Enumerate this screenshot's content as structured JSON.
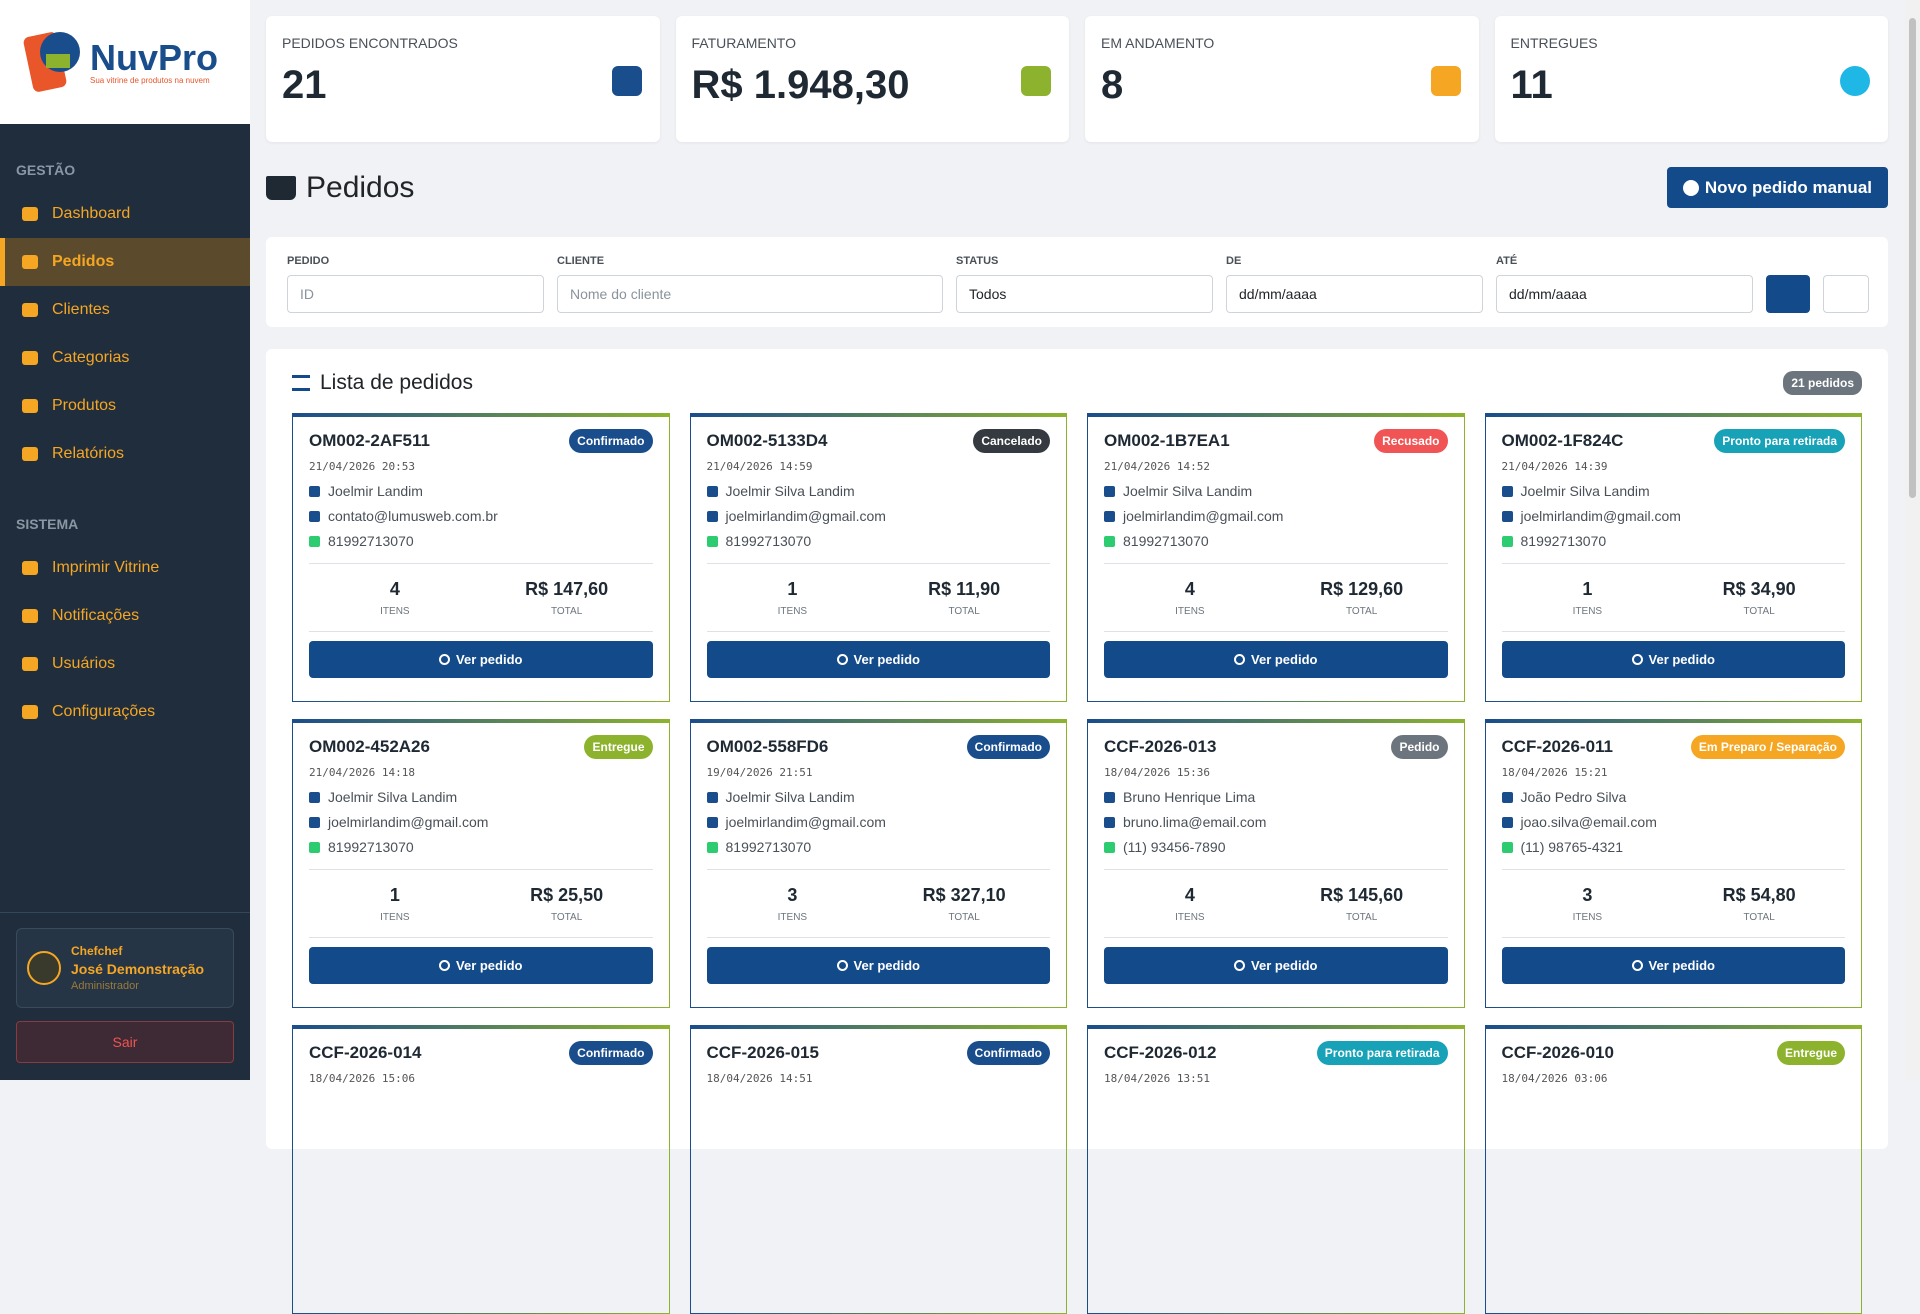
{
  "brand": {
    "name": "NuvPro",
    "tagline": "Sua vitrine de produtos na nuvem"
  },
  "sidebar": {
    "sections": [
      {
        "title": "GESTÃO",
        "items": [
          {
            "label": "Dashboard"
          },
          {
            "label": "Pedidos",
            "active": true
          },
          {
            "label": "Clientes"
          },
          {
            "label": "Categorias"
          },
          {
            "label": "Produtos"
          },
          {
            "label": "Relatórios"
          }
        ]
      },
      {
        "title": "SISTEMA",
        "items": [
          {
            "label": "Imprimir Vitrine"
          },
          {
            "label": "Notificações"
          },
          {
            "label": "Usuários"
          },
          {
            "label": "Configurações"
          }
        ]
      }
    ],
    "user": {
      "org": "Chefchef",
      "name": "José Demonstração",
      "role": "Administrador"
    },
    "logout": "Sair"
  },
  "stats": [
    {
      "label": "PEDIDOS ENCONTRADOS",
      "value": "21",
      "icon_color": "#1a4d8c"
    },
    {
      "label": "FATURAMENTO",
      "value": "R$ 1.948,30",
      "icon_color": "#8db32e"
    },
    {
      "label": "EM ANDAMENTO",
      "value": "8",
      "icon_color": "#f5a623"
    },
    {
      "label": "ENTREGUES",
      "value": "11",
      "icon_color": "#1eb7e6"
    }
  ],
  "header": {
    "title": "Pedidos",
    "new_button": "Novo pedido manual"
  },
  "filters": [
    {
      "label": "PEDIDO",
      "placeholder": "ID"
    },
    {
      "label": "CLIENTE",
      "placeholder": "Nome do cliente"
    },
    {
      "label": "STATUS",
      "value": "Todos"
    },
    {
      "label": "DE",
      "value": "dd/mm/aaaa"
    },
    {
      "label": "ATÉ",
      "value": "dd/mm/aaaa"
    }
  ],
  "list": {
    "title": "Lista de pedidos",
    "count": "21 pedidos",
    "items_label": "ITENS",
    "total_label": "TOTAL",
    "action": "Ver pedido",
    "orders": [
      {
        "id": "OM002-2AF511",
        "status": "Confirmado",
        "status_color": "#1a4d8c",
        "date": "21/04/2026 20:53",
        "name": "Joelmir Landim",
        "email": "contato@lumusweb.com.br",
        "phone": "81992713070",
        "items": "4",
        "total": "R$ 147,60"
      },
      {
        "id": "OM002-5133D4",
        "status": "Cancelado",
        "status_color": "#343a40",
        "date": "21/04/2026 14:59",
        "name": "Joelmir Silva Landim",
        "email": "joelmirlandim@gmail.com",
        "phone": "81992713070",
        "items": "1",
        "total": "R$ 11,90"
      },
      {
        "id": "OM002-1B7EA1",
        "status": "Recusado",
        "status_color": "#f05454",
        "date": "21/04/2026 14:52",
        "name": "Joelmir Silva Landim",
        "email": "joelmirlandim@gmail.com",
        "phone": "81992713070",
        "items": "4",
        "total": "R$ 129,60"
      },
      {
        "id": "OM002-1F824C",
        "status": "Pronto para retirada",
        "status_color": "#17a2b8",
        "date": "21/04/2026 14:39",
        "name": "Joelmir Silva Landim",
        "email": "joelmirlandim@gmail.com",
        "phone": "81992713070",
        "items": "1",
        "total": "R$ 34,90"
      },
      {
        "id": "OM002-452A26",
        "status": "Entregue",
        "status_color": "#8db32e",
        "date": "21/04/2026 14:18",
        "name": "Joelmir Silva Landim",
        "email": "joelmirlandim@gmail.com",
        "phone": "81992713070",
        "items": "1",
        "total": "R$ 25,50"
      },
      {
        "id": "OM002-558FD6",
        "status": "Confirmado",
        "status_color": "#1a4d8c",
        "date": "19/04/2026 21:51",
        "name": "Joelmir Silva Landim",
        "email": "joelmirlandim@gmail.com",
        "phone": "81992713070",
        "items": "3",
        "total": "R$ 327,10"
      },
      {
        "id": "CCF-2026-013",
        "status": "Pedido",
        "status_color": "#6c757d",
        "date": "18/04/2026 15:36",
        "name": "Bruno Henrique Lima",
        "email": "bruno.lima@email.com",
        "phone": "(11) 93456-7890",
        "items": "4",
        "total": "R$ 145,60"
      },
      {
        "id": "CCF-2026-011",
        "status": "Em Preparo / Separação",
        "status_color": "#f5a623",
        "date": "18/04/2026 15:21",
        "name": "João Pedro Silva",
        "email": "joao.silva@email.com",
        "phone": "(11) 98765-4321",
        "items": "3",
        "total": "R$ 54,80"
      },
      {
        "id": "CCF-2026-014",
        "status": "Confirmado",
        "status_color": "#1a4d8c",
        "date": "18/04/2026 15:06"
      },
      {
        "id": "CCF-2026-015",
        "status": "Confirmado",
        "status_color": "#1a4d8c",
        "date": "18/04/2026 14:51"
      },
      {
        "id": "CCF-2026-012",
        "status": "Pronto para retirada",
        "status_color": "#17a2b8",
        "date": "18/04/2026 13:51"
      },
      {
        "id": "CCF-2026-010",
        "status": "Entregue",
        "status_color": "#8db32e",
        "date": "18/04/2026 03:06"
      }
    ]
  }
}
